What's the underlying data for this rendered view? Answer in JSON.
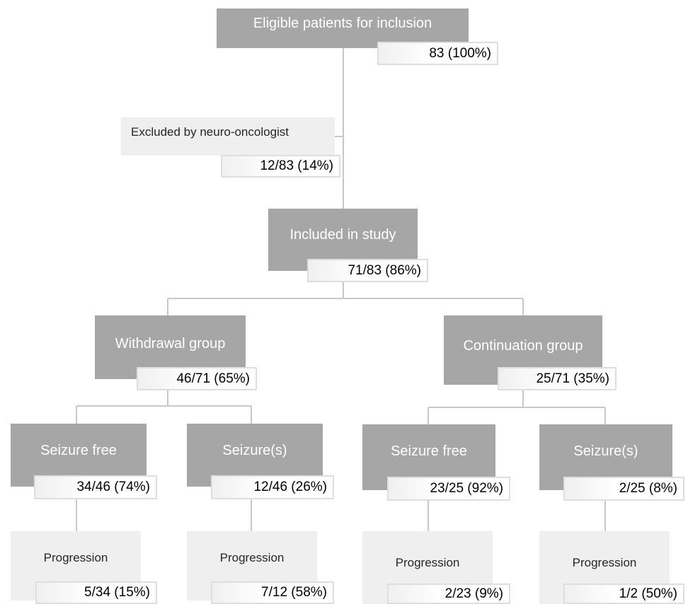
{
  "diagram": {
    "eligible": {
      "label": "Eligible patients for inclusion",
      "count": "83 (100%)"
    },
    "excluded": {
      "label": "Excluded by neuro-oncologist",
      "count": "12/83 (14%)"
    },
    "included": {
      "label": "Included in study",
      "count": "71/83 (86%)"
    },
    "withdrawal": {
      "label": "Withdrawal group",
      "count": "46/71 (65%)",
      "seizure_free": {
        "label": "Seizure free",
        "count": "34/46 (74%)",
        "progression": {
          "label": "Progression",
          "count": "5/34 (15%)"
        }
      },
      "seizures": {
        "label": "Seizure(s)",
        "count": "12/46 (26%)",
        "progression": {
          "label": "Progression",
          "count": "7/12 (58%)"
        }
      }
    },
    "continuation": {
      "label": "Continuation group",
      "count": "25/71 (35%)",
      "seizure_free": {
        "label": "Seizure free",
        "count": "23/25 (92%)",
        "progression": {
          "label": "Progression",
          "count": "2/23 (9%)"
        }
      },
      "seizures": {
        "label": "Seizure(s)",
        "count": "2/25 (8%)",
        "progression": {
          "label": "Progression",
          "count": "1/2 (50%)"
        }
      }
    }
  }
}
